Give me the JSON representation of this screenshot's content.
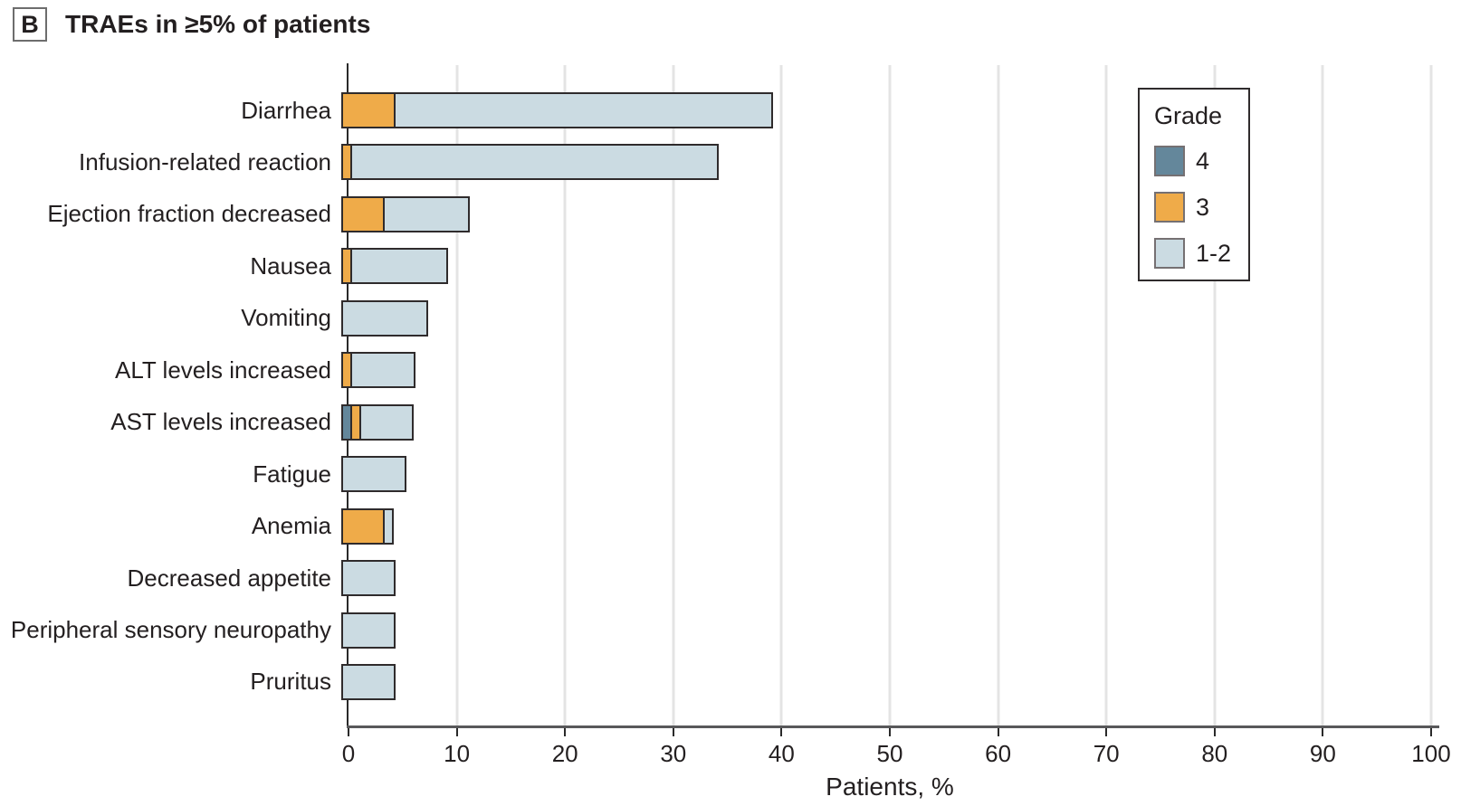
{
  "panel": {
    "label": "B",
    "title": "TRAEs in ≥5% of patients"
  },
  "chart_data": {
    "type": "bar",
    "orientation": "horizontal",
    "stacked": true,
    "title": "TRAEs in ≥5% of patients",
    "categories": [
      "Diarrhea",
      "Infusion-related reaction",
      "Ejection fraction decreased",
      "Nausea",
      "Vomiting",
      "ALT levels increased",
      "AST levels increased",
      "Fatigue",
      "Anemia",
      "Decreased appetite",
      "Peripheral sensory neuropathy",
      "Pruritus"
    ],
    "series": [
      {
        "name": "4",
        "color": "#64879b",
        "values": [
          0,
          0,
          0,
          0,
          0,
          0,
          1,
          0,
          0,
          0,
          0,
          0
        ]
      },
      {
        "name": "3",
        "color": "#efab49",
        "values": [
          5,
          1,
          4,
          1,
          0,
          1,
          1,
          0,
          4,
          0,
          0,
          0
        ]
      },
      {
        "name": "1-2",
        "color": "#cbdbe2",
        "values": [
          35,
          34,
          8,
          9,
          8,
          6,
          5,
          6,
          1,
          5,
          5,
          5
        ]
      }
    ],
    "totals": [
      40,
      35,
      12,
      10,
      8,
      7,
      7,
      6,
      5,
      5,
      5,
      5
    ],
    "xlabel": "Patients, %",
    "xlim": [
      0,
      100
    ],
    "xticks": [
      0,
      10,
      20,
      30,
      40,
      50,
      60,
      70,
      80,
      90,
      100
    ],
    "grid": true,
    "legend": {
      "title": "Grade",
      "position": "upper-right"
    }
  },
  "colors": {
    "grade4": "#64879b",
    "grade3": "#efab49",
    "grade12": "#cbdbe2",
    "bar_border": "#2f2b2c",
    "gridline": "#e4e4e4",
    "axis_line": "#58585a",
    "text": "#231f20"
  }
}
